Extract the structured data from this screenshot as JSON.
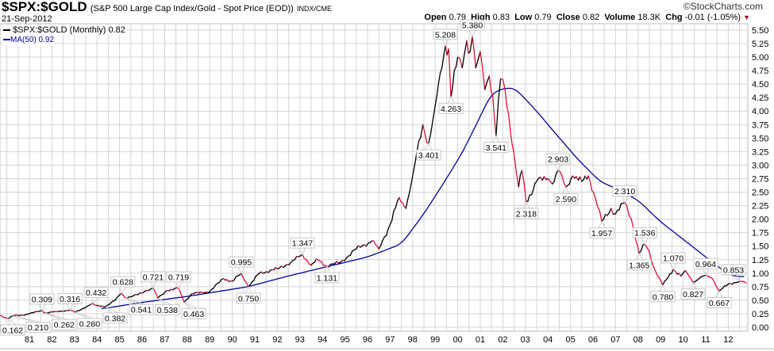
{
  "header": {
    "symbol": "$SPX:$GOLD",
    "description": "(S&P 500 Large Cap Index/Gold - Spot Price (EOD))",
    "source": "INDX/CME",
    "date": "21-Sep-2012",
    "brand": "©StockCharts.com",
    "open_label": "Open",
    "open": "0.79",
    "high_label": "High",
    "high": "0.83",
    "low_label": "Low",
    "low": "0.79",
    "close_label": "Close",
    "close": "0.82",
    "volume_label": "Volume",
    "volume": "18.3K",
    "chg_label": "Chg",
    "chg": "-0.01 (-1.05%)",
    "chg_icon": "down-triangle-icon"
  },
  "legend": {
    "price": "$SPX:$GOLD (Monthly) 0.82",
    "ma": "MA(50) 0.92"
  },
  "chart_data": {
    "type": "line",
    "title": "$SPX:$GOLD (S&P 500 Large Cap Index/Gold - Spot Price (EOD))",
    "xlabel": "",
    "ylabel": "",
    "ylim": [
      0,
      5.6
    ],
    "xlim": [
      1979.7,
      2013.0
    ],
    "y_ticks": [
      "0.00",
      "0.25",
      "0.50",
      "0.75",
      "1.00",
      "1.25",
      "1.50",
      "1.75",
      "2.00",
      "2.25",
      "2.50",
      "2.75",
      "3.00",
      "3.25",
      "3.50",
      "3.75",
      "4.00",
      "4.25",
      "4.50",
      "4.75",
      "5.00",
      "5.25",
      "5.50"
    ],
    "x_ticks": [
      "81",
      "82",
      "83",
      "84",
      "85",
      "86",
      "87",
      "88",
      "89",
      "90",
      "91",
      "92",
      "93",
      "94",
      "95",
      "96",
      "97",
      "98",
      "99",
      "00",
      "01",
      "02",
      "03",
      "04",
      "05",
      "06",
      "07",
      "08",
      "09",
      "10",
      "11",
      "12"
    ],
    "grid": true,
    "legend_position": "top-left",
    "colors": {
      "up": "#000000",
      "down": "#e0103a",
      "ma": "#0000a0",
      "grid": "#d4d4d4"
    },
    "series": [
      {
        "name": "$SPX:$GOLD (Monthly)",
        "points": [
          [
            1979.7,
            0.22
          ],
          [
            1980.05,
            0.162
          ],
          [
            1980.26,
            0.21
          ],
          [
            1980.6,
            0.22
          ],
          [
            1981.0,
            0.25
          ],
          [
            1981.56,
            0.309
          ],
          [
            1981.7,
            0.262
          ],
          [
            1982.2,
            0.29
          ],
          [
            1982.8,
            0.316
          ],
          [
            1983.04,
            0.28
          ],
          [
            1983.4,
            0.35
          ],
          [
            1983.75,
            0.432
          ],
          [
            1984.0,
            0.4
          ],
          [
            1984.38,
            0.382
          ],
          [
            1984.8,
            0.5
          ],
          [
            1985.08,
            0.628
          ],
          [
            1985.26,
            0.541
          ],
          [
            1985.8,
            0.6
          ],
          [
            1986.2,
            0.68
          ],
          [
            1986.49,
            0.721
          ],
          [
            1986.7,
            0.538
          ],
          [
            1987.1,
            0.68
          ],
          [
            1987.62,
            0.719
          ],
          [
            1987.87,
            0.463
          ],
          [
            1988.2,
            0.62
          ],
          [
            1989.0,
            0.66
          ],
          [
            1989.6,
            0.9
          ],
          [
            1990.0,
            0.85
          ],
          [
            1990.4,
            0.995
          ],
          [
            1990.72,
            0.75
          ],
          [
            1991.2,
            1.0
          ],
          [
            1992.0,
            1.08
          ],
          [
            1992.6,
            1.2
          ],
          [
            1993.11,
            1.347
          ],
          [
            1993.5,
            1.15
          ],
          [
            1993.8,
            1.25
          ],
          [
            1994.2,
            1.131
          ],
          [
            1994.8,
            1.2
          ],
          [
            1995.5,
            1.45
          ],
          [
            1996.2,
            1.6
          ],
          [
            1996.5,
            1.45
          ],
          [
            1997.0,
            1.9
          ],
          [
            1997.4,
            2.4
          ],
          [
            1997.7,
            2.2
          ],
          [
            1998.0,
            2.8
          ],
          [
            1998.45,
            3.75
          ],
          [
            1998.71,
            3.401
          ],
          [
            1999.0,
            4.1
          ],
          [
            1999.3,
            4.8
          ],
          [
            1999.45,
            5.208
          ],
          [
            1999.6,
            5.15
          ],
          [
            1999.7,
            4.263
          ],
          [
            2000.0,
            5.0
          ],
          [
            2000.2,
            4.8
          ],
          [
            2000.4,
            5.3
          ],
          [
            2000.55,
            5.1
          ],
          [
            2000.65,
            5.38
          ],
          [
            2000.8,
            4.8
          ],
          [
            2001.0,
            5.1
          ],
          [
            2001.2,
            4.4
          ],
          [
            2001.4,
            4.65
          ],
          [
            2001.55,
            4.3
          ],
          [
            2001.7,
            3.541
          ],
          [
            2001.9,
            4.6
          ],
          [
            2002.1,
            4.4
          ],
          [
            2002.5,
            3.2
          ],
          [
            2002.7,
            2.6
          ],
          [
            2002.85,
            2.9
          ],
          [
            2003.04,
            2.318
          ],
          [
            2003.5,
            2.7
          ],
          [
            2004.0,
            2.75
          ],
          [
            2004.2,
            2.65
          ],
          [
            2004.45,
            2.903
          ],
          [
            2004.8,
            2.59
          ],
          [
            2005.1,
            2.8
          ],
          [
            2005.5,
            2.7
          ],
          [
            2005.8,
            2.8
          ],
          [
            2006.1,
            2.4
          ],
          [
            2006.39,
            1.957
          ],
          [
            2006.8,
            2.2
          ],
          [
            2007.0,
            2.1
          ],
          [
            2007.41,
            2.31
          ],
          [
            2007.7,
            2.0
          ],
          [
            2008.05,
            1.365
          ],
          [
            2008.3,
            1.536
          ],
          [
            2008.5,
            1.4
          ],
          [
            2008.7,
            1.1
          ],
          [
            2009.1,
            0.78
          ],
          [
            2009.56,
            1.07
          ],
          [
            2009.9,
            0.95
          ],
          [
            2010.1,
            1.05
          ],
          [
            2010.44,
            0.827
          ],
          [
            2010.7,
            0.9
          ],
          [
            2011.0,
            0.964
          ],
          [
            2011.3,
            0.9
          ],
          [
            2011.6,
            0.667
          ],
          [
            2012.0,
            0.8
          ],
          [
            2012.51,
            0.853
          ],
          [
            2012.8,
            0.82
          ]
        ]
      },
      {
        "name": "MA(50)",
        "points": [
          [
            1984.2,
            0.34
          ],
          [
            1986,
            0.46
          ],
          [
            1988,
            0.57
          ],
          [
            1990.7,
            0.75
          ],
          [
            1992.5,
            0.95
          ],
          [
            1994.2,
            1.12
          ],
          [
            1996,
            1.3
          ],
          [
            1997.5,
            1.54
          ],
          [
            1998.5,
            2.1
          ],
          [
            1999.5,
            2.75
          ],
          [
            2000.2,
            3.23
          ],
          [
            2001.0,
            3.9
          ],
          [
            2001.5,
            4.33
          ],
          [
            2002.2,
            4.44
          ],
          [
            2002.6,
            4.4
          ],
          [
            2003.5,
            4.0
          ],
          [
            2004.0,
            3.75
          ],
          [
            2005.3,
            3.12
          ],
          [
            2006.3,
            2.7
          ],
          [
            2007.0,
            2.57
          ],
          [
            2008.0,
            2.35
          ],
          [
            2009.0,
            1.95
          ],
          [
            2009.9,
            1.66
          ],
          [
            2011.0,
            1.3
          ],
          [
            2011.7,
            1.07
          ],
          [
            2012.2,
            0.95
          ],
          [
            2012.7,
            0.93
          ]
        ]
      }
    ],
    "annotations": [
      {
        "x": 1980.05,
        "value": "0.162"
      },
      {
        "x": 1980.26,
        "value": "0.210"
      },
      {
        "x": 1981.56,
        "value": "0.309"
      },
      {
        "x": 1981.7,
        "value": "0.262"
      },
      {
        "x": 1982.8,
        "value": "0.316"
      },
      {
        "x": 1983.04,
        "value": "0.280"
      },
      {
        "x": 1983.75,
        "value": "0.432"
      },
      {
        "x": 1984.38,
        "value": "0.382"
      },
      {
        "x": 1985.08,
        "value": "0.628"
      },
      {
        "x": 1985.26,
        "value": "0.541"
      },
      {
        "x": 1986.49,
        "value": "0.721"
      },
      {
        "x": 1986.7,
        "value": "0.538"
      },
      {
        "x": 1987.62,
        "value": "0.719"
      },
      {
        "x": 1987.87,
        "value": "0.463"
      },
      {
        "x": 1990.4,
        "value": "0.995"
      },
      {
        "x": 1990.72,
        "value": "0.750"
      },
      {
        "x": 1993.11,
        "value": "1.347"
      },
      {
        "x": 1994.2,
        "value": "1.131"
      },
      {
        "x": 1998.71,
        "value": "3.401"
      },
      {
        "x": 1999.45,
        "value": "5.208"
      },
      {
        "x": 1999.7,
        "value": "4.263"
      },
      {
        "x": 2000.65,
        "value": "5.380"
      },
      {
        "x": 2001.7,
        "value": "3.541"
      },
      {
        "x": 2003.04,
        "value": "2.318"
      },
      {
        "x": 2004.45,
        "value": "2.903"
      },
      {
        "x": 2004.8,
        "value": "2.590"
      },
      {
        "x": 2006.39,
        "value": "1.957"
      },
      {
        "x": 2007.41,
        "value": "2.310"
      },
      {
        "x": 2008.05,
        "value": "1.365"
      },
      {
        "x": 2008.3,
        "value": "1.536"
      },
      {
        "x": 2009.1,
        "value": "0.780"
      },
      {
        "x": 2009.56,
        "value": "1.070"
      },
      {
        "x": 2010.44,
        "value": "0.827"
      },
      {
        "x": 2011.0,
        "value": "0.964"
      },
      {
        "x": 2011.6,
        "value": "0.667"
      },
      {
        "x": 2012.51,
        "value": "0.853"
      }
    ]
  }
}
